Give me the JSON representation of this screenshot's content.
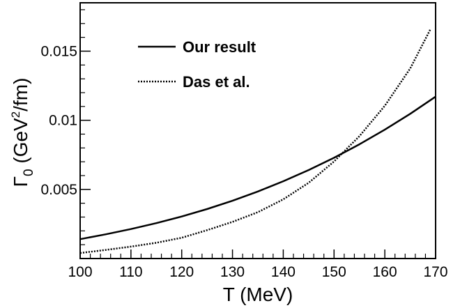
{
  "chart_data": {
    "type": "line",
    "xlabel": "T (MeV)",
    "ylabel": {
      "main": "Γ",
      "subscript": "0",
      "unit_pre": " (GeV",
      "unit_sup": "2",
      "unit_post": "/fm)"
    },
    "xlim": [
      100,
      170
    ],
    "ylim": [
      0.0,
      0.0185
    ],
    "xticks": [
      100,
      110,
      120,
      130,
      140,
      150,
      160,
      170
    ],
    "xtick_labels": [
      "100",
      "110",
      "120",
      "130",
      "140",
      "150",
      "160",
      "170"
    ],
    "yticks": [
      0.005,
      0.01,
      0.015
    ],
    "ytick_labels": [
      "0.005",
      "0.01",
      "0.015"
    ],
    "grid": false,
    "legend_position": "top-left",
    "series": [
      {
        "name": "Our result",
        "style": "solid",
        "x": [
          100,
          105,
          110,
          115,
          120,
          125,
          130,
          135,
          140,
          145,
          150,
          155,
          160,
          165,
          170
        ],
        "y": [
          0.0014,
          0.00175,
          0.00213,
          0.00256,
          0.00304,
          0.00358,
          0.00418,
          0.00485,
          0.00559,
          0.0064,
          0.00729,
          0.00826,
          0.00932,
          0.01047,
          0.01171
        ]
      },
      {
        "name": "Das et al.",
        "style": "dotted",
        "x": [
          100,
          105,
          110,
          115,
          120,
          125,
          130,
          135,
          140,
          145,
          150,
          155,
          160,
          165,
          169
        ],
        "y": [
          0.0004,
          0.00062,
          0.00086,
          0.00114,
          0.0015,
          0.00205,
          0.00265,
          0.00335,
          0.00428,
          0.00548,
          0.00702,
          0.00885,
          0.01105,
          0.01375,
          0.0166
        ]
      }
    ]
  }
}
